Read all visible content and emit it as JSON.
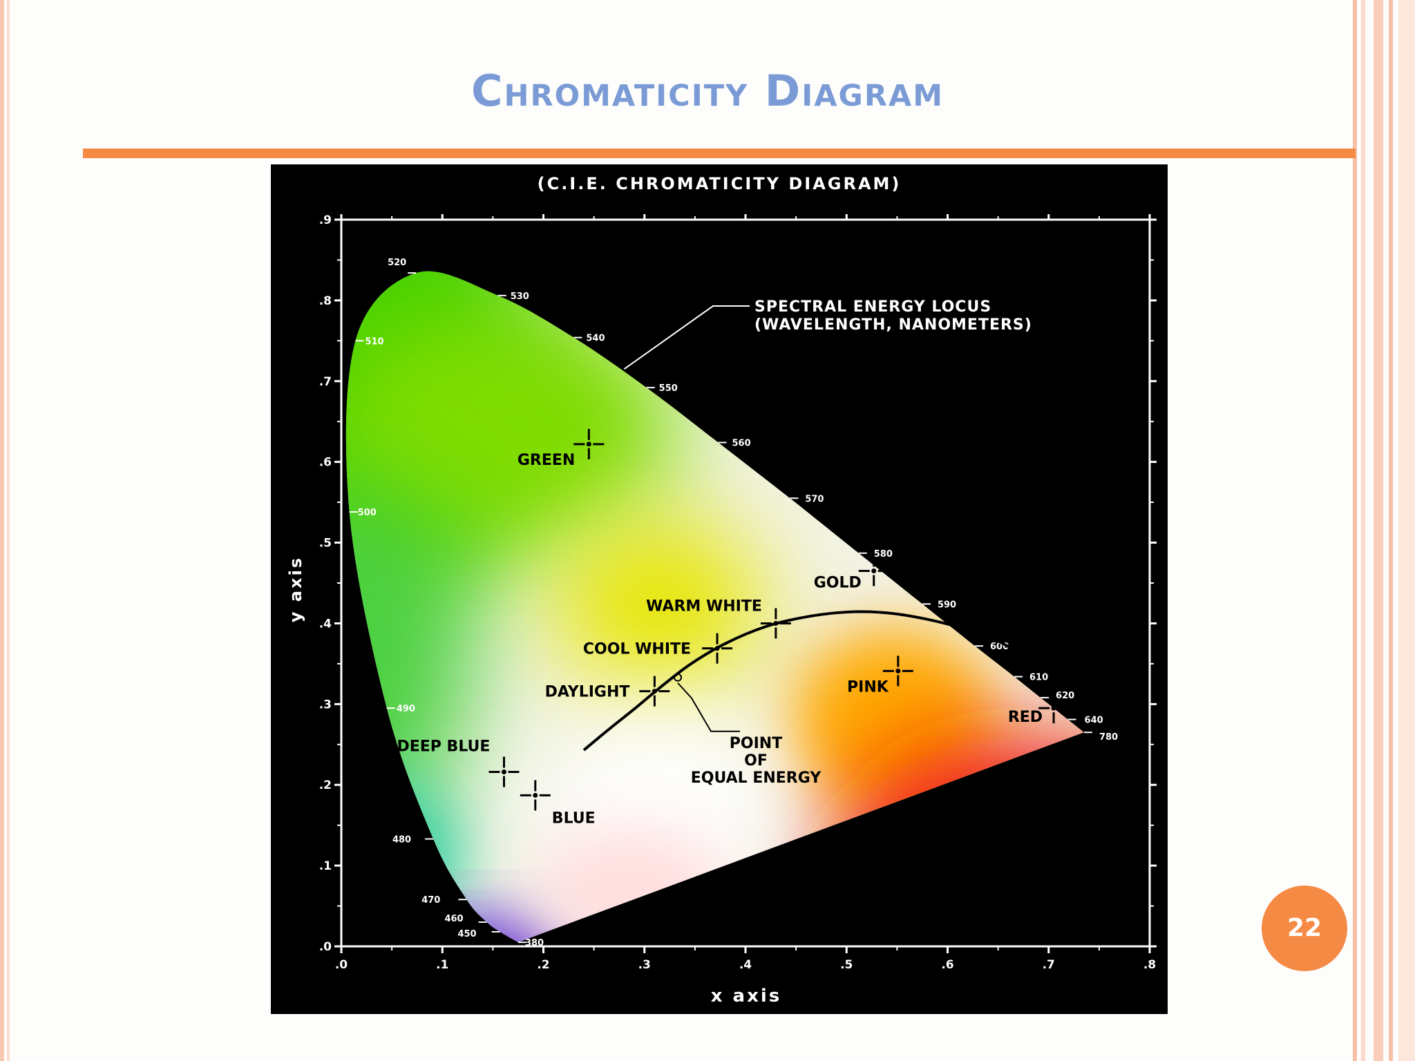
{
  "slide": {
    "title": "Chromaticity Diagram",
    "page_number": "22",
    "accent_color": "#f58a44",
    "title_color": "#7b9bd6"
  },
  "figure": {
    "caption": "(C.I.E. CHROMATICITY  DIAGRAM)",
    "xlabel": "x axis",
    "ylabel": "y axis",
    "xlim": [
      0,
      0.8
    ],
    "ylim": [
      0,
      0.9
    ],
    "x_ticks": [
      ".0",
      ".1",
      ".2",
      ".3",
      ".4",
      ".5",
      ".6",
      ".7",
      ".8"
    ],
    "y_ticks": [
      ".0",
      ".1",
      ".2",
      ".3",
      ".4",
      ".5",
      ".6",
      ".7",
      ".8",
      ".9"
    ],
    "locus_callout": {
      "line1": "SPECTRAL ENERGY LOCUS",
      "line2": "(WAVELENGTH, NANOMETERS)"
    },
    "equal_energy_callout": {
      "line1": "POINT",
      "line2": "OF",
      "line3": "EQUAL ENERGY"
    },
    "spectral_locus": [
      {
        "label": "380",
        "x": 0.175,
        "y": 0.005
      },
      {
        "label": "450",
        "x": 0.157,
        "y": 0.018
      },
      {
        "label": "460",
        "x": 0.144,
        "y": 0.03
      },
      {
        "label": "470",
        "x": 0.124,
        "y": 0.058
      },
      {
        "label": "480",
        "x": 0.091,
        "y": 0.133
      },
      {
        "label": "490",
        "x": 0.045,
        "y": 0.295
      },
      {
        "label": "500",
        "x": 0.008,
        "y": 0.538
      },
      {
        "label": "510",
        "x": 0.014,
        "y": 0.75
      },
      {
        "label": "520",
        "x": 0.074,
        "y": 0.834
      },
      {
        "label": "530",
        "x": 0.155,
        "y": 0.806
      },
      {
        "label": "540",
        "x": 0.23,
        "y": 0.754
      },
      {
        "label": "550",
        "x": 0.302,
        "y": 0.692
      },
      {
        "label": "560",
        "x": 0.373,
        "y": 0.624
      },
      {
        "label": "570",
        "x": 0.444,
        "y": 0.555
      },
      {
        "label": "580",
        "x": 0.512,
        "y": 0.487
      },
      {
        "label": "590",
        "x": 0.575,
        "y": 0.424
      },
      {
        "label": "600",
        "x": 0.627,
        "y": 0.372
      },
      {
        "label": "610",
        "x": 0.666,
        "y": 0.334
      },
      {
        "label": "620",
        "x": 0.692,
        "y": 0.308
      },
      {
        "label": "640",
        "x": 0.719,
        "y": 0.281
      },
      {
        "label": "780",
        "x": 0.735,
        "y": 0.265
      }
    ],
    "points": [
      {
        "label": "GREEN",
        "x": 0.245,
        "y": 0.622
      },
      {
        "label": "GOLD",
        "x": 0.527,
        "y": 0.465
      },
      {
        "label": "WARM WHITE",
        "x": 0.43,
        "y": 0.4
      },
      {
        "label": "COOL WHITE",
        "x": 0.372,
        "y": 0.369
      },
      {
        "label": "DAYLIGHT",
        "x": 0.31,
        "y": 0.316
      },
      {
        "label": "PINK",
        "x": 0.551,
        "y": 0.341
      },
      {
        "label": "RED",
        "x": 0.705,
        "y": 0.295
      },
      {
        "label": "DEEP BLUE",
        "x": 0.161,
        "y": 0.216
      },
      {
        "label": "BLUE",
        "x": 0.192,
        "y": 0.187
      }
    ],
    "equal_energy_point": {
      "x": 0.333,
      "y": 0.333
    },
    "planckian_locus": [
      {
        "x": 0.24,
        "y": 0.243
      },
      {
        "x": 0.265,
        "y": 0.269
      },
      {
        "x": 0.29,
        "y": 0.294
      },
      {
        "x": 0.315,
        "y": 0.32
      },
      {
        "x": 0.345,
        "y": 0.349
      },
      {
        "x": 0.38,
        "y": 0.375
      },
      {
        "x": 0.42,
        "y": 0.396
      },
      {
        "x": 0.46,
        "y": 0.408
      },
      {
        "x": 0.5,
        "y": 0.414
      },
      {
        "x": 0.54,
        "y": 0.413
      },
      {
        "x": 0.58,
        "y": 0.405
      },
      {
        "x": 0.62,
        "y": 0.392
      },
      {
        "x": 0.65,
        "y": 0.378
      },
      {
        "x": 0.68,
        "y": 0.357
      }
    ]
  }
}
